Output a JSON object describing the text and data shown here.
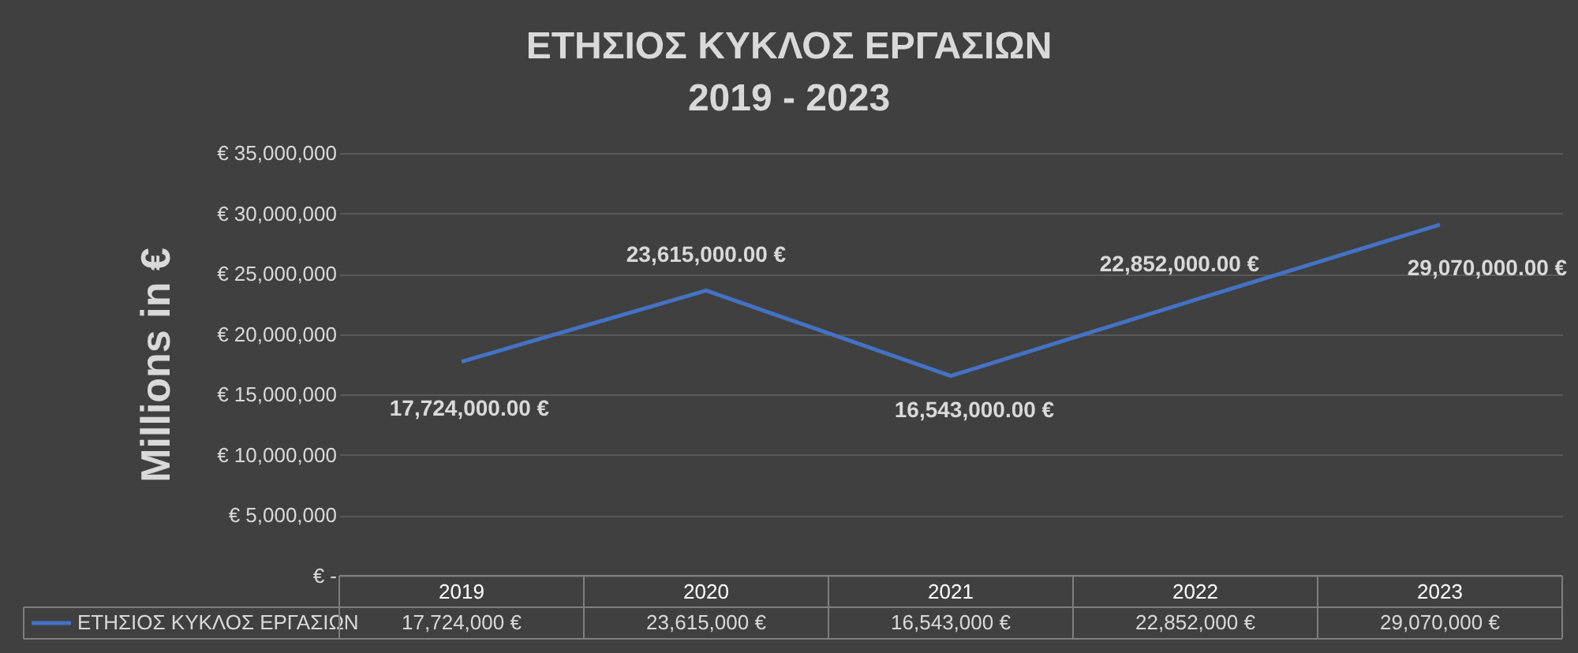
{
  "chart_data": {
    "type": "line",
    "title": "ΕΤΗΣΙΟΣ ΚΥΚΛΟΣ ΕΡΓΑΣΙΩΝ\n2019 - 2023",
    "ylabel": "Millions in €",
    "categories": [
      "2019",
      "2020",
      "2021",
      "2022",
      "2023"
    ],
    "series": [
      {
        "name": "ΕΤΗΣΙΟΣ ΚΥΚΛΟΣ ΕΡΓΑΣΙΩΝ",
        "color": "#4472c4",
        "values": [
          17724000,
          23615000,
          16543000,
          22852000,
          29070000
        ],
        "value_labels": [
          "17,724,000.00 €",
          "23,615,000.00 €",
          "16,543,000.00 €",
          "22,852,000.00 €",
          "29,070,000.00 €"
        ]
      }
    ],
    "ylim": [
      0,
      35000000
    ],
    "yticks": [
      {
        "value": 0,
        "label": "€ -"
      },
      {
        "value": 5000000,
        "label": "€ 5,000,000"
      },
      {
        "value": 10000000,
        "label": "€ 10,000,000"
      },
      {
        "value": 15000000,
        "label": "€ 15,000,000"
      },
      {
        "value": 20000000,
        "label": "€ 20,000,000"
      },
      {
        "value": 25000000,
        "label": "€ 25,000,000"
      },
      {
        "value": 30000000,
        "label": "€ 30,000,000"
      },
      {
        "value": 35000000,
        "label": "€ 35,000,000"
      }
    ],
    "annotations": [
      "17,724,000  €",
      "23,615,000  €",
      "16,543,000  €",
      "22,852,000  €",
      "29,070,000  €"
    ],
    "grid": "y",
    "legend": "bottom",
    "marker": "none",
    "line_style": "solid"
  }
}
